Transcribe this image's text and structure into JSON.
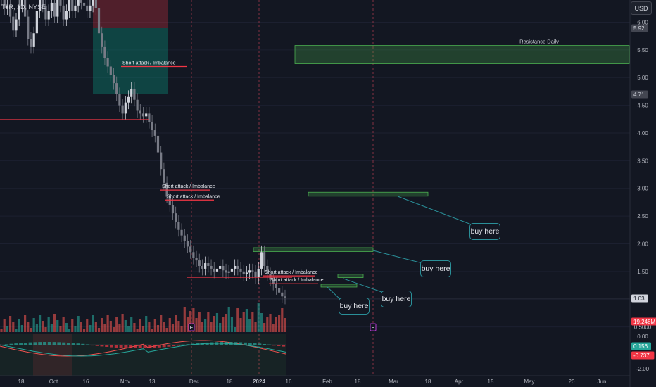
{
  "symbol": "T6R, 1D, NYSE",
  "currency_button": "USD",
  "chart_data": {
    "type": "candlestick",
    "ylim": [
      0.5,
      6.2
    ],
    "yticks": [
      "6.00",
      "5.50",
      "5.00",
      "4.50",
      "4.00",
      "3.50",
      "3.00",
      "2.50",
      "2.00",
      "1.50",
      "1.00",
      "0.5000"
    ],
    "ytick_values": [
      6.0,
      5.5,
      5.0,
      4.5,
      4.0,
      3.5,
      3.0,
      2.5,
      2.0,
      1.5,
      1.0,
      0.5
    ],
    "xticks": [
      "18",
      "Oct",
      "16",
      "Nov",
      "13",
      "Dec",
      "18",
      "2024",
      "16",
      "Feb",
      "18",
      "Mar",
      "18",
      "Apr",
      "15",
      "May",
      "20",
      "Jun"
    ],
    "price_labels": {
      "top": "5.92",
      "mid": "4.71",
      "current": "1.03",
      "volume": "19.248M",
      "osc_green": "0.156",
      "osc_red": "-0.737"
    },
    "osc_ticks": [
      "0.00",
      "-2.00"
    ],
    "zones": [
      {
        "label": "Resistance Daily",
        "top": 5.58,
        "bottom": 5.25
      },
      {
        "label": "",
        "top": 2.93,
        "bottom": 2.86
      },
      {
        "label": "",
        "top": 1.93,
        "bottom": 1.86
      },
      {
        "label": "",
        "top": 1.45,
        "bottom": 1.39
      },
      {
        "label": "",
        "top": 1.27,
        "bottom": 1.22
      }
    ],
    "annotations": [
      {
        "text": "Short attack / Imbalance",
        "price": 5.2
      },
      {
        "text": "Short attack / Imbalance",
        "price": 2.97
      },
      {
        "text": "Short attack / Imbalance",
        "price": 2.79
      },
      {
        "text": "Short attack / Imbalance",
        "price": 1.42
      },
      {
        "text": "Short attack / Imbalance",
        "price": 1.28
      }
    ],
    "callouts": [
      "buy here",
      "buy here",
      "buy here",
      "buy here"
    ],
    "event_markers": [
      "E",
      "E"
    ],
    "series_closes": [
      6.42,
      6.25,
      6.3,
      6.1,
      5.85,
      6.05,
      6.3,
      6.45,
      6.1,
      5.7,
      5.55,
      5.8,
      6.2,
      6.45,
      6.3,
      6.05,
      6.2,
      6.35,
      6.1,
      6.4,
      6.3,
      6.05,
      6.2,
      6.4,
      6.2,
      6.3,
      6.4,
      6.35,
      6.3,
      6.2,
      6.3,
      6.4,
      6.25,
      5.8,
      5.55,
      5.35,
      5.2,
      5.05,
      4.9,
      4.7,
      4.5,
      4.35,
      4.55,
      4.65,
      4.8,
      4.6,
      4.4,
      4.35,
      4.3,
      4.35,
      4.2,
      4.05,
      3.95,
      3.65,
      3.35,
      3.1,
      2.85,
      2.7,
      2.55,
      2.4,
      2.25,
      2.15,
      2.05,
      1.95,
      1.85,
      1.75,
      1.7,
      1.6,
      1.55,
      1.65,
      1.6,
      1.55,
      1.5,
      1.55,
      1.6,
      1.52,
      1.48,
      1.5,
      1.55,
      1.6,
      1.55,
      1.5,
      1.45,
      1.48,
      1.52,
      1.5,
      1.4,
      1.55,
      1.85,
      1.6,
      1.45,
      1.35,
      1.28,
      1.2,
      1.12,
      1.05,
      1.03
    ]
  }
}
